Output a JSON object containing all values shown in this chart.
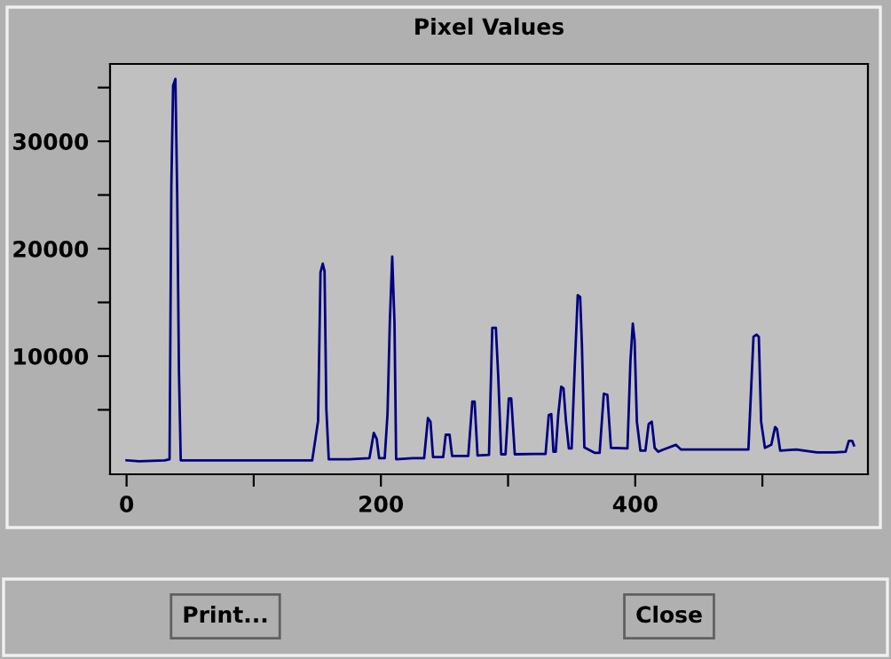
{
  "chart_data": {
    "type": "line",
    "title": "Pixel Values",
    "x": [
      0,
      10,
      30,
      33.8,
      35.2,
      36.6,
      38.4,
      39.8,
      41.2,
      42.6,
      60,
      100,
      146,
      150.6,
      152.5,
      154.3,
      155.7,
      157.1,
      159,
      175,
      191,
      194.4,
      196.7,
      198.6,
      203,
      205.2,
      207,
      208.9,
      210.7,
      212,
      225,
      234,
      237,
      239,
      241,
      249,
      251,
      254,
      256,
      268.7,
      271.9,
      273.7,
      276,
      285,
      287.6,
      290.4,
      292.3,
      294.6,
      298,
      300.6,
      302.5,
      305.3,
      320,
      329.5,
      332,
      334,
      335.7,
      337.5,
      339.5,
      341.8,
      343.6,
      345.5,
      347.8,
      350,
      352.4,
      354.8,
      356.7,
      358.1,
      360,
      368,
      372,
      375.3,
      378.1,
      380.9,
      393.9,
      396.2,
      398.1,
      399.5,
      401.3,
      404.1,
      408,
      410.6,
      413,
      415.3,
      418,
      422,
      432,
      436,
      459,
      489,
      493,
      495.4,
      497.2,
      499,
      502,
      507,
      510,
      511.5,
      514,
      526.6,
      543,
      557,
      565.5,
      568,
      570.6,
      572
    ],
    "values": [
      300,
      200,
      300,
      400,
      25800,
      35200,
      35800,
      25100,
      8500,
      300,
      300,
      300,
      300,
      3950,
      17800,
      18600,
      17900,
      5060,
      400,
      400,
      500,
      2850,
      2300,
      500,
      500,
      4600,
      13070,
      19270,
      13070,
      400,
      500,
      500,
      4230,
      3900,
      600,
      600,
      2680,
      2680,
      700,
      700,
      5770,
      5770,
      750,
      800,
      12640,
      12640,
      8090,
      860,
      860,
      6050,
      6050,
      860,
      900,
      900,
      4510,
      4600,
      1100,
      1100,
      4600,
      7160,
      7000,
      4000,
      1400,
      1400,
      8920,
      15670,
      15500,
      11030,
      1500,
      1000,
      1000,
      6500,
      6400,
      1460,
      1400,
      9480,
      13020,
      11500,
      3900,
      1200,
      1200,
      3680,
      3900,
      1460,
      1100,
      1300,
      1740,
      1300,
      1300,
      1300,
      11800,
      12000,
      11800,
      3900,
      1460,
      1740,
      3400,
      3200,
      1200,
      1300,
      1030,
      1030,
      1100,
      2120,
      2120,
      1700
    ],
    "color": "#000080",
    "xlim": [
      -13,
      583
    ],
    "ylim": [
      -1000,
      37200
    ],
    "xticks": [
      0,
      {
        "value": 100,
        "label": null
      },
      200,
      {
        "value": 300,
        "label": null
      },
      400,
      {
        "value": 500,
        "label": null
      }
    ],
    "yticks": [
      {
        "value": 5000,
        "label": null
      },
      10000,
      {
        "value": 15000,
        "label": null
      },
      20000,
      {
        "value": 25000,
        "label": null
      },
      30000,
      {
        "value": 35000,
        "label": null
      }
    ],
    "grid": false,
    "legend": false,
    "annotations": [
      "Print...",
      "Close"
    ]
  }
}
